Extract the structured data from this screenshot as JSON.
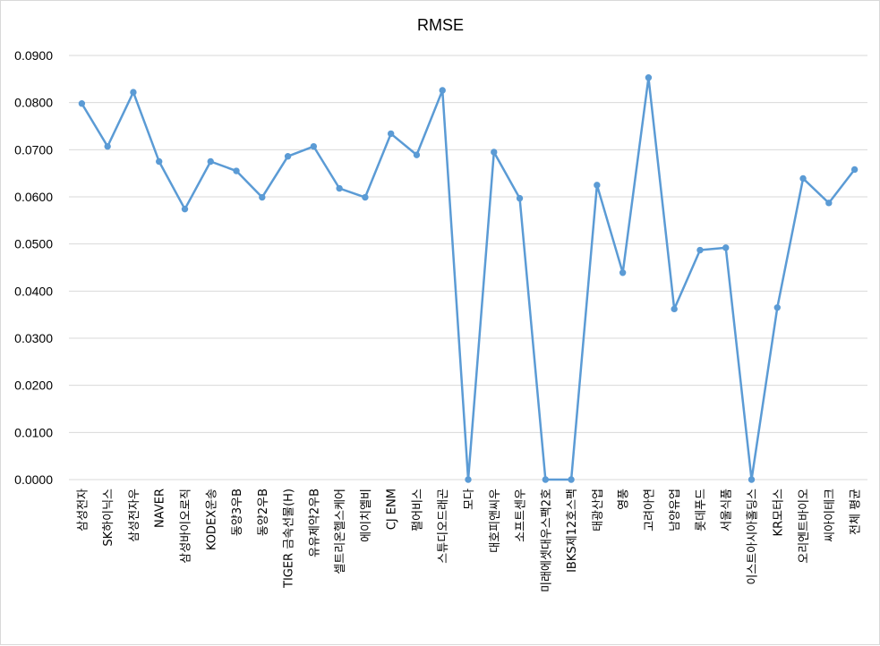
{
  "chart_data": {
    "type": "line",
    "title": "RMSE",
    "xlabel": "",
    "ylabel": "",
    "ylim": [
      0,
      0.09
    ],
    "ytick_step": 0.01,
    "ytick_labels": [
      "0.0000",
      "0.0100",
      "0.0200",
      "0.0300",
      "0.0400",
      "0.0500",
      "0.0600",
      "0.0700",
      "0.0800",
      "0.0900"
    ],
    "grid": true,
    "legend": "none",
    "colors": {
      "series": "#5b9bd5",
      "grid": "#d9d9d9"
    },
    "categories": [
      "삼성전자",
      "SK하이닉스",
      "삼성전자우",
      "NAVER",
      "삼성바이오로직",
      "KODEX운송",
      "동양3우B",
      "동양2우B",
      "TIGER 금속선물(H)",
      "유유제약2우B",
      "셀트리온헬스케어",
      "에이치엘비",
      "CJ ENM",
      "펄어비스",
      "스튜디오드래곤",
      "모다",
      "대호피앤씨우",
      "소프트센우",
      "미래에셋대우스팩2호",
      "IBKS제12호스팩",
      "태광산업",
      "영풍",
      "고려아연",
      "남양유업",
      "롯데푸드",
      "서울식품",
      "이스트아시아홀딩스",
      "KR모터스",
      "오리엔트바이오",
      "씨아이테크",
      "전체 평균"
    ],
    "series": [
      {
        "values": [
          0.0798,
          0.0707,
          0.0822,
          0.0675,
          0.0574,
          0.0675,
          0.0655,
          0.0599,
          0.0686,
          0.0707,
          0.0618,
          0.0599,
          0.0734,
          0.0689,
          0.0826,
          0.0,
          0.0695,
          0.0597,
          0.0,
          0.0,
          0.0625,
          0.0439,
          0.0853,
          0.0362,
          0.0487,
          0.0492,
          0.0,
          0.0365,
          0.0639,
          0.0587,
          0.0658
        ]
      }
    ]
  }
}
